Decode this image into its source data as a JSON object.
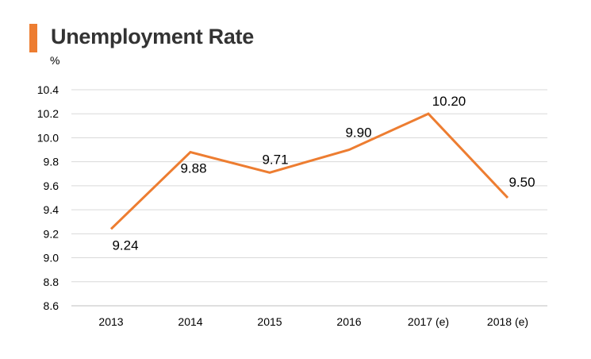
{
  "title": "Unemployment Rate",
  "unit_label": "%",
  "colors": {
    "accent": "#ED7D31",
    "line": "#ED7D31",
    "grid": "#D9D9D9",
    "axis": "#BFBFBF",
    "title": "#333333"
  },
  "chart_data": {
    "type": "line",
    "title": "Unemployment Rate",
    "xlabel": "",
    "ylabel": "%",
    "categories": [
      "2013",
      "2014",
      "2015",
      "2016",
      "2017 (e)",
      "2018 (e)"
    ],
    "series": [
      {
        "values": [
          9.24,
          9.88,
          9.71,
          9.9,
          10.2,
          9.5
        ],
        "data_labels": [
          "9.24",
          "9.88",
          "9.71",
          "9.90",
          "10.20",
          "9.50"
        ]
      }
    ],
    "ylim": [
      8.6,
      10.4
    ],
    "yticks": [
      "8.6",
      "8.8",
      "9.0",
      "9.2",
      "9.4",
      "9.6",
      "9.8",
      "10.0",
      "10.2",
      "10.4"
    ],
    "grid": true,
    "legend": "none"
  }
}
